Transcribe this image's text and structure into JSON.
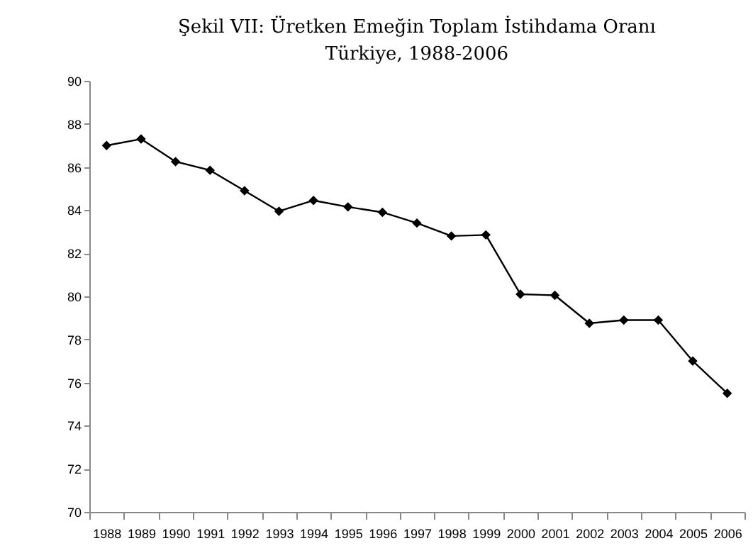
{
  "chart_data": {
    "type": "line",
    "title": "Şekil VII:  Üretken Emeğin Toplam İstihdama Oranı",
    "subtitle": "Türkiye, 1988-2006",
    "categories": [
      "1988",
      "1989",
      "1990",
      "1991",
      "1992",
      "1993",
      "1994",
      "1995",
      "1996",
      "1997",
      "1998",
      "1999",
      "2000",
      "2001",
      "2002",
      "2003",
      "2004",
      "2005",
      "2006"
    ],
    "series": [
      {
        "color": "#000000",
        "values": [
          87.0,
          87.3,
          86.25,
          85.85,
          84.9,
          83.95,
          84.45,
          84.15,
          83.9,
          83.4,
          82.8,
          82.85,
          80.1,
          80.05,
          78.75,
          78.9,
          78.9,
          77.0,
          75.5
        ]
      }
    ],
    "ylim": [
      70,
      90
    ],
    "yticks": [
      70,
      72,
      74,
      76,
      78,
      80,
      82,
      84,
      86,
      88,
      90
    ],
    "grid": false,
    "legend": false,
    "marker": "diamond",
    "line_style": "solid"
  }
}
